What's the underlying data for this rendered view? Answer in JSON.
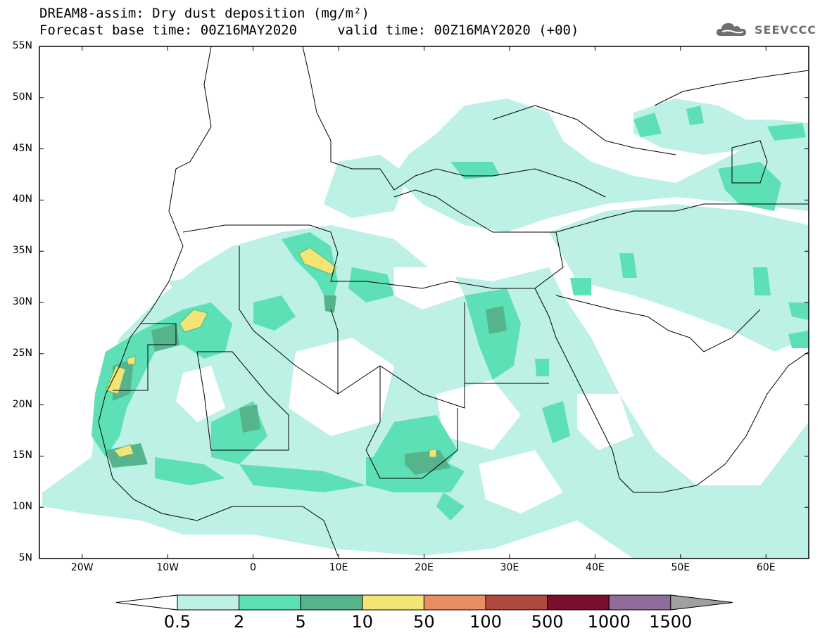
{
  "header": {
    "title_line1": "DREAM8-assim: Dry dust deposition (mg/m²)",
    "title_line2": "Forecast base time: 00Z16MAY2020     valid time: 00Z16MAY2020 (+00)"
  },
  "logo": {
    "text": "SEEVCCC",
    "icon": "cloud-icon"
  },
  "map": {
    "lon_range": [
      -25,
      65
    ],
    "lat_range": [
      5,
      55
    ],
    "lat_ticks": [
      {
        "value": 55,
        "label": "55N"
      },
      {
        "value": 50,
        "label": "50N"
      },
      {
        "value": 45,
        "label": "45N"
      },
      {
        "value": 40,
        "label": "40N"
      },
      {
        "value": 35,
        "label": "35N"
      },
      {
        "value": 30,
        "label": "30N"
      },
      {
        "value": 25,
        "label": "25N"
      },
      {
        "value": 20,
        "label": "20N"
      },
      {
        "value": 15,
        "label": "15N"
      },
      {
        "value": 10,
        "label": "10N"
      },
      {
        "value": 5,
        "label": "5N"
      }
    ],
    "lon_ticks": [
      {
        "value": -20,
        "label": "20W"
      },
      {
        "value": -10,
        "label": "10W"
      },
      {
        "value": 0,
        "label": "0"
      },
      {
        "value": 10,
        "label": "10E"
      },
      {
        "value": 20,
        "label": "20E"
      },
      {
        "value": 30,
        "label": "30E"
      },
      {
        "value": 40,
        "label": "40E"
      },
      {
        "value": 50,
        "label": "50E"
      },
      {
        "value": 60,
        "label": "60E"
      }
    ]
  },
  "colorbar": {
    "labels": [
      "0.5",
      "2",
      "5",
      "10",
      "50",
      "100",
      "500",
      "1000",
      "1500"
    ],
    "colors": [
      "#bdf1e6",
      "#5de0b5",
      "#56b48c",
      "#f2e573",
      "#e98e63",
      "#b04a3c",
      "#7b0e2e",
      "#8f6c9c"
    ],
    "under_color": "#ffffff",
    "over_color": "#a0a0a0"
  }
}
